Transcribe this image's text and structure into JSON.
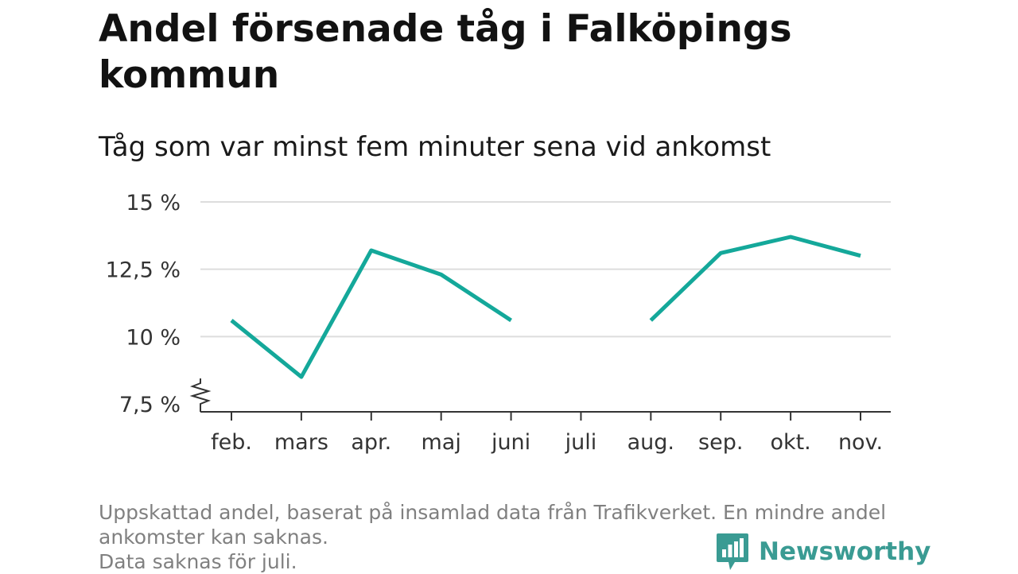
{
  "title": "Andel försenade tåg i Falköpings kommun",
  "subtitle": "Tåg som var minst fem minuter sena vid ankomst",
  "footnote": {
    "line1": "Uppskattad andel, baserat på insamlad data från Trafikverket. En mindre andel",
    "line2": "ankomster kan saknas.",
    "line3": "Data saknas för juli."
  },
  "brand": {
    "name": "Newsworthy",
    "icon": "bar-chart-bubble-icon"
  },
  "colors": {
    "line": "#14a89a",
    "grid": "#dddddd",
    "axis": "#333333",
    "brand": "#3a9b93"
  },
  "chart_data": {
    "type": "line",
    "categories": [
      "feb.",
      "mars",
      "apr.",
      "maj",
      "juni",
      "juli",
      "aug.",
      "sep.",
      "okt.",
      "nov."
    ],
    "series": [
      {
        "values": [
          10.6,
          8.5,
          13.2,
          12.3,
          10.6,
          null,
          10.6,
          13.1,
          13.7,
          13.0
        ]
      }
    ],
    "yticks": [
      7.5,
      10,
      12.5,
      15
    ],
    "ytick_labels": [
      "7,5 %",
      "10 %",
      "12,5 %",
      "15 %"
    ],
    "ylim": [
      7.5,
      15
    ],
    "y_axis_break": true,
    "grid": true,
    "xlabel": "",
    "ylabel": ""
  }
}
